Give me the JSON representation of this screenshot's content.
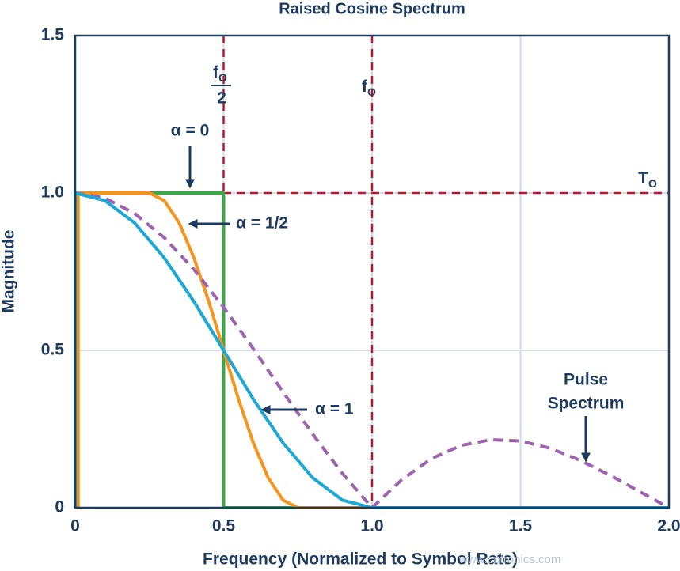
{
  "chart_data": {
    "type": "line",
    "title": "Raised Cosine Spectrum",
    "x_label": "Frequency (Normalized to Symbol Rate)",
    "y_label": "Magnitude",
    "xlim": [
      0,
      2.0
    ],
    "ylim": [
      0,
      1.5
    ],
    "xticks": [
      0,
      0.5,
      {
        "value": 1,
        "label": "1.0"
      },
      1.5,
      {
        "value": 2,
        "label": "2.0"
      }
    ],
    "yticks": [
      0,
      0.5,
      {
        "value": 1,
        "label": "1.0"
      },
      1.5
    ],
    "grid": true,
    "series": [
      {
        "name": "α = 0",
        "color": "#3aaa47",
        "dashed": false,
        "x": [
          0,
          0,
          0.5,
          0.5,
          1.0
        ],
        "values": [
          0,
          1,
          1,
          0,
          0
        ]
      },
      {
        "name": "α = 1/2",
        "color": "#f7941d",
        "dashed": false,
        "x": [
          0.01,
          0.01,
          0.25,
          0.3,
          0.35,
          0.4,
          0.45,
          0.5,
          0.55,
          0.6,
          0.65,
          0.7,
          0.75,
          2.0
        ],
        "values": [
          0,
          1,
          1,
          0.976,
          0.905,
          0.794,
          0.655,
          0.5,
          0.345,
          0.206,
          0.095,
          0.024,
          0,
          0
        ]
      },
      {
        "name": "Pulse Spectrum",
        "color": "#9d63b0",
        "dashed": true,
        "x": [
          0,
          0.1,
          0.2,
          0.3,
          0.4,
          0.5,
          0.6,
          0.7,
          0.8,
          0.9,
          1.0,
          1.1,
          1.2,
          1.3,
          1.4,
          1.5,
          1.6,
          1.7,
          1.8,
          1.9,
          2.0
        ],
        "values": [
          1,
          0.984,
          0.935,
          0.858,
          0.757,
          0.637,
          0.505,
          0.368,
          0.234,
          0.109,
          0,
          0.089,
          0.156,
          0.198,
          0.216,
          0.212,
          0.189,
          0.151,
          0.104,
          0.052,
          0
        ]
      },
      {
        "name": "α = 1",
        "color": "#1ba8d4",
        "dashed": false,
        "x": [
          0,
          0,
          0.1,
          0.2,
          0.3,
          0.4,
          0.5,
          0.6,
          0.7,
          0.8,
          0.9,
          1.0,
          2.0
        ],
        "values": [
          0,
          1,
          0.976,
          0.905,
          0.794,
          0.655,
          0.5,
          0.345,
          0.206,
          0.095,
          0.024,
          0,
          0
        ]
      }
    ],
    "reference_lines": [
      {
        "axis": "x",
        "value": 0.5,
        "color": "#c8102e"
      },
      {
        "axis": "x",
        "value": 1.0,
        "color": "#c8102e"
      },
      {
        "axis": "y",
        "value": 1.0,
        "color": "#c8102e"
      }
    ],
    "annotations": {
      "half_fo": {
        "main": "f",
        "sub": "O",
        "denominator": "2"
      },
      "fo": {
        "main": "f",
        "sub": "O"
      },
      "to": {
        "main": "T",
        "sub": "O"
      },
      "pulse": [
        "Pulse",
        "Spectrum"
      ]
    },
    "watermark": "www.cntronics.com"
  }
}
